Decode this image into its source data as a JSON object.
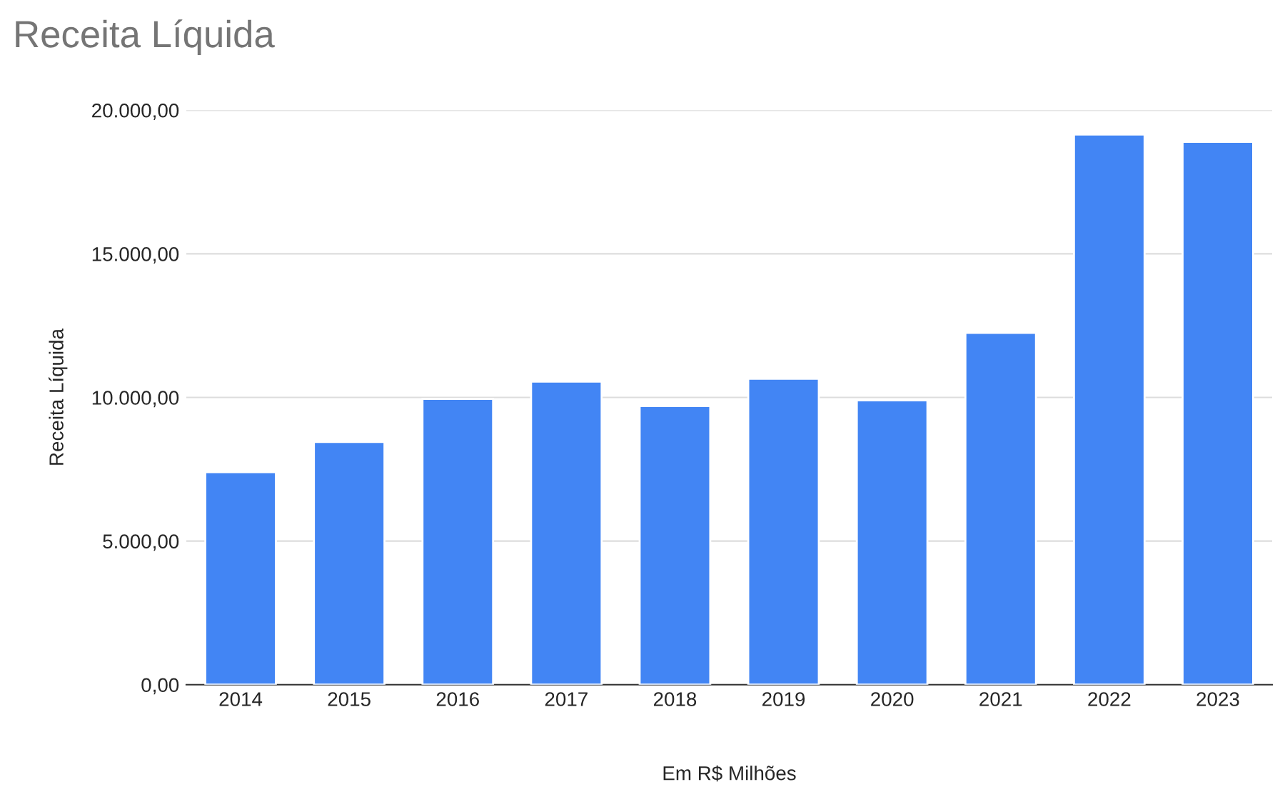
{
  "chart_data": {
    "type": "bar",
    "title": "Receita Líquida",
    "xlabel": "Em R$ Milhões",
    "ylabel": "Receita Líquida",
    "categories": [
      "2014",
      "2015",
      "2016",
      "2017",
      "2018",
      "2019",
      "2020",
      "2021",
      "2022",
      "2023"
    ],
    "series": [
      {
        "color": "#4285f4",
        "values": [
          7400,
          8450,
          9950,
          10550,
          9700,
          10650,
          9900,
          12250,
          19150,
          18900
        ]
      }
    ],
    "ylim": [
      0,
      20000
    ],
    "yticks": [
      {
        "value": 0,
        "label": "0,00"
      },
      {
        "value": 5000,
        "label": "5.000,00"
      },
      {
        "value": 10000,
        "label": "10.000,00"
      },
      {
        "value": 15000,
        "label": "15.000,00"
      },
      {
        "value": 20000,
        "label": "20.000,00"
      }
    ],
    "grid": "y"
  }
}
